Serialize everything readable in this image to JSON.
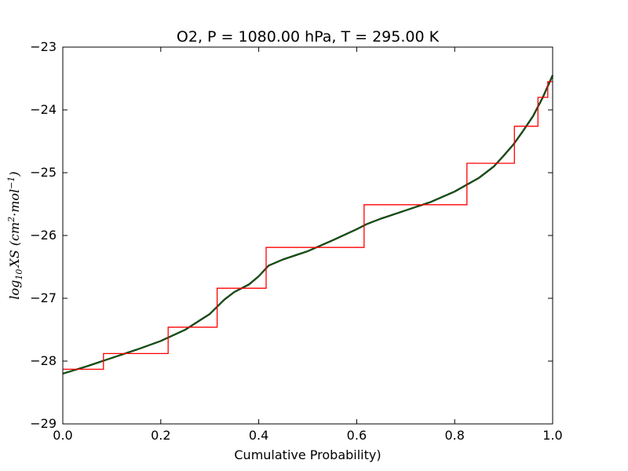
{
  "chart_data": {
    "type": "line",
    "title": "O2, P = 1080.00 hPa, T = 295.00 K",
    "xlabel": "Cumulative Probability)",
    "ylabel": {
      "prefix": "log",
      "prefix_sub": "10",
      "quantity": "XS (",
      "unit_1": "cm",
      "unit_1_sup": "2",
      "unit_sep": "·",
      "unit_2": "mol",
      "unit_2_sup": "−1",
      "close": ")"
    },
    "xlim": [
      0.0,
      1.0
    ],
    "ylim": [
      -29,
      -23
    ],
    "x_ticks": [
      "0.0",
      "0.2",
      "0.4",
      "0.6",
      "0.8",
      "1.0"
    ],
    "y_ticks": [
      "−23",
      "−24",
      "−25",
      "−26",
      "−27",
      "−28",
      "−29"
    ],
    "grid": false,
    "series": [
      {
        "style": "smooth",
        "color": "#000000",
        "overlay_color": "#008000",
        "x": [
          0.0,
          0.05,
          0.1,
          0.15,
          0.2,
          0.25,
          0.3,
          0.33,
          0.35,
          0.38,
          0.4,
          0.42,
          0.45,
          0.5,
          0.55,
          0.6,
          0.62,
          0.65,
          0.7,
          0.75,
          0.8,
          0.85,
          0.88,
          0.9,
          0.92,
          0.94,
          0.96,
          0.98,
          1.0
        ],
        "y": [
          -28.2,
          -28.08,
          -27.95,
          -27.82,
          -27.68,
          -27.5,
          -27.25,
          -27.02,
          -26.9,
          -26.78,
          -26.65,
          -26.48,
          -26.38,
          -26.25,
          -26.08,
          -25.9,
          -25.82,
          -25.73,
          -25.6,
          -25.47,
          -25.3,
          -25.08,
          -24.9,
          -24.73,
          -24.55,
          -24.33,
          -24.1,
          -23.8,
          -23.45
        ]
      },
      {
        "style": "step",
        "color": "#ff0000",
        "x": [
          0.0,
          0.083,
          0.083,
          0.215,
          0.215,
          0.315,
          0.315,
          0.415,
          0.415,
          0.615,
          0.615,
          0.825,
          0.825,
          0.922,
          0.922,
          0.97,
          0.97,
          0.99,
          0.99,
          1.0
        ],
        "y": [
          -28.13,
          -28.13,
          -27.88,
          -27.88,
          -27.46,
          -27.46,
          -26.84,
          -26.84,
          -26.19,
          -26.19,
          -25.51,
          -25.51,
          -24.85,
          -24.85,
          -24.26,
          -24.26,
          -23.8,
          -23.8,
          -23.55,
          -23.55
        ]
      }
    ]
  }
}
